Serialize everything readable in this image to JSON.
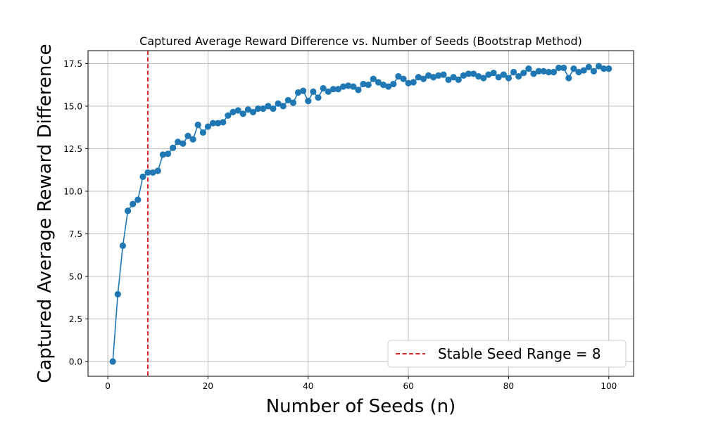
{
  "chart_data": {
    "type": "line",
    "title": "Captured Average Reward Difference vs. Number of Seeds (Bootstrap Method)",
    "xlabel": "Number of Seeds (n)",
    "ylabel": "Captured Average Reward Difference",
    "xlim": [
      -3.95,
      104.95
    ],
    "ylim": [
      -0.87,
      18.26
    ],
    "xticks": [
      0,
      20,
      40,
      60,
      80,
      100
    ],
    "yticks": [
      0.0,
      2.5,
      5.0,
      7.5,
      10.0,
      12.5,
      15.0,
      17.5
    ],
    "ytick_labels": [
      "0.0",
      "2.5",
      "5.0",
      "7.5",
      "10.0",
      "12.5",
      "15.0",
      "17.5"
    ],
    "grid": true,
    "legend_position": "lower-right",
    "series": [
      {
        "color": "#1f77b4",
        "marker": "circle",
        "x": [
          1,
          2,
          3,
          4,
          5,
          6,
          7,
          8,
          9,
          10,
          11,
          12,
          13,
          14,
          15,
          16,
          17,
          18,
          19,
          20,
          21,
          22,
          23,
          24,
          25,
          26,
          27,
          28,
          29,
          30,
          31,
          32,
          33,
          34,
          35,
          36,
          37,
          38,
          39,
          40,
          41,
          42,
          43,
          44,
          45,
          46,
          47,
          48,
          49,
          50,
          51,
          52,
          53,
          54,
          55,
          56,
          57,
          58,
          59,
          60,
          61,
          62,
          63,
          64,
          65,
          66,
          67,
          68,
          69,
          70,
          71,
          72,
          73,
          74,
          75,
          76,
          77,
          78,
          79,
          80,
          81,
          82,
          83,
          84,
          85,
          86,
          87,
          88,
          89,
          90,
          91,
          92,
          93,
          94,
          95,
          96,
          97,
          98,
          99,
          100
        ],
        "y": [
          0.0,
          3.95,
          6.8,
          8.85,
          9.25,
          9.5,
          10.85,
          11.1,
          11.1,
          11.2,
          12.15,
          12.2,
          12.55,
          12.9,
          12.8,
          13.25,
          13.05,
          13.9,
          13.45,
          13.8,
          14.0,
          14.0,
          14.05,
          14.45,
          14.65,
          14.75,
          14.55,
          14.8,
          14.65,
          14.85,
          14.85,
          15.0,
          14.85,
          15.15,
          15.0,
          15.35,
          15.2,
          15.8,
          15.9,
          15.3,
          15.85,
          15.5,
          16.05,
          15.85,
          16.0,
          16.0,
          16.15,
          16.2,
          16.15,
          15.95,
          16.3,
          16.25,
          16.6,
          16.4,
          16.25,
          16.15,
          16.3,
          16.75,
          16.6,
          16.35,
          16.4,
          16.7,
          16.6,
          16.8,
          16.7,
          16.8,
          16.85,
          16.55,
          16.7,
          16.55,
          16.8,
          16.9,
          16.9,
          16.75,
          16.65,
          16.85,
          16.95,
          16.7,
          16.85,
          16.65,
          17.0,
          16.75,
          16.95,
          17.2,
          16.9,
          17.05,
          17.05,
          17.0,
          17.0,
          17.25,
          17.25,
          16.65,
          17.2,
          17.0,
          17.1,
          17.3,
          17.05,
          17.35,
          17.2,
          17.2
        ]
      }
    ],
    "reference_line": {
      "x": 8,
      "color": "#d62728",
      "style": "dashed",
      "legend_label": "Stable Seed Range = 8"
    }
  }
}
